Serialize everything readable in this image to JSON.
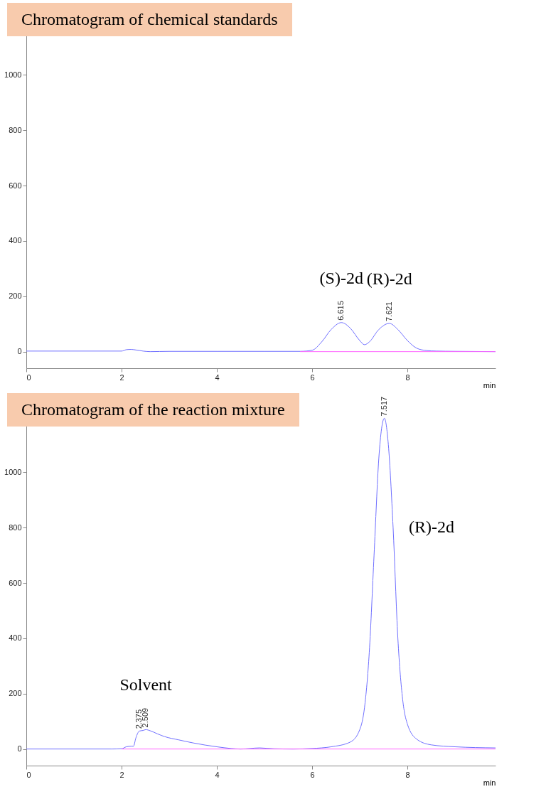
{
  "chart_data": [
    {
      "type": "line",
      "title": "Chromatogram of chemical standards",
      "xlabel": "min",
      "xlim": [
        0,
        9.85
      ],
      "xticks": [
        0,
        2,
        4,
        6,
        8
      ],
      "ylim": [
        -60,
        1250
      ],
      "yticks": [
        0,
        200,
        400,
        600,
        800,
        1000
      ],
      "series": [
        {
          "color": "#6f6fff",
          "x": [
            0,
            1,
            2.0,
            2.1,
            2.2,
            2.3,
            2.45,
            2.6,
            3,
            4,
            5,
            5.75,
            6.0,
            6.2,
            6.4,
            6.615,
            6.8,
            7.0,
            7.1,
            7.2,
            7.4,
            7.621,
            7.8,
            8.0,
            8.2,
            8.4,
            8.6,
            9,
            9.85
          ],
          "values": [
            2,
            2,
            2,
            7,
            8,
            6,
            2,
            0,
            1,
            1,
            1,
            1,
            5,
            35,
            80,
            105,
            85,
            40,
            25,
            35,
            80,
            102,
            80,
            40,
            12,
            4,
            2,
            1,
            0
          ]
        },
        {
          "color": "#ff66ff",
          "x": [
            5.75,
            9.85
          ],
          "values": [
            0,
            0
          ]
        }
      ],
      "annotations": [
        {
          "text": "6.615",
          "x": 6.615,
          "y": 105
        },
        {
          "text": "7.621",
          "x": 7.621,
          "y": 102
        },
        {
          "text": "(S)-2d",
          "x": 6.615,
          "y": 105
        },
        {
          "text": "(R)-2d",
          "x": 7.621,
          "y": 102
        }
      ]
    },
    {
      "type": "line",
      "title": "Chromatogram of the reaction mixture",
      "xlabel": "min",
      "xlim": [
        0,
        9.85
      ],
      "xticks": [
        0,
        2,
        4,
        6,
        8
      ],
      "ylim": [
        -60,
        1250
      ],
      "yticks": [
        0,
        200,
        400,
        600,
        800,
        1000
      ],
      "series": [
        {
          "color": "#6f6fff",
          "x": [
            0,
            1.8,
            2.0,
            2.1,
            2.2,
            2.25,
            2.3,
            2.375,
            2.45,
            2.509,
            2.6,
            2.75,
            2.9,
            3.2,
            3.5,
            4.0,
            4.3,
            4.5,
            4.9,
            5.2,
            5.6,
            6.0,
            6.4,
            6.8,
            7.0,
            7.1,
            7.2,
            7.3,
            7.4,
            7.517,
            7.6,
            7.7,
            7.8,
            7.9,
            8.0,
            8.2,
            8.5,
            9.0,
            9.85
          ],
          "values": [
            0,
            0,
            1,
            8,
            10,
            10,
            40,
            65,
            67,
            70,
            66,
            55,
            45,
            33,
            22,
            8,
            2,
            0,
            4,
            1,
            0,
            2,
            8,
            25,
            70,
            150,
            350,
            700,
            1050,
            1195,
            1100,
            800,
            400,
            180,
            90,
            35,
            15,
            8,
            4
          ]
        },
        {
          "color": "#ff66ff",
          "x": [
            2.0,
            9.85
          ],
          "values": [
            0,
            0
          ]
        }
      ],
      "annotations": [
        {
          "text": "2.375",
          "x": 2.375,
          "y": 65
        },
        {
          "text": "2.509",
          "x": 2.509,
          "y": 70
        },
        {
          "text": "7.517",
          "x": 7.517,
          "y": 1195
        },
        {
          "text": "Solvent",
          "x": 2.509,
          "y": 70
        },
        {
          "text": "(R)-2d",
          "x": 7.7,
          "y": 800
        }
      ]
    }
  ]
}
